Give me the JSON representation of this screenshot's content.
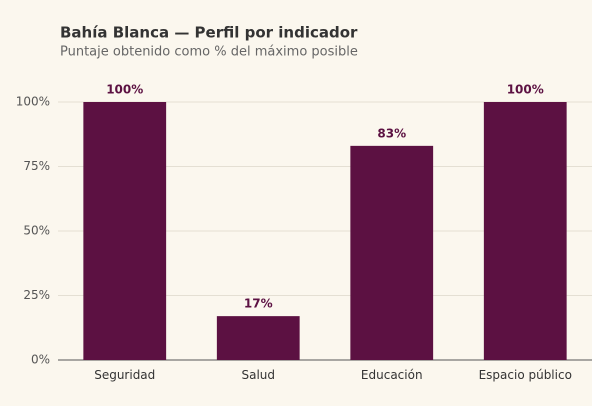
{
  "chart_data": {
    "type": "bar",
    "title": "Bahía Blanca — Perfil por indicador",
    "subtitle": "Puntaje obtenido como % del máximo posible",
    "categories": [
      "Seguridad",
      "Salud",
      "Educación",
      "Espacio público"
    ],
    "values": [
      100,
      17,
      83,
      100
    ],
    "value_labels": [
      "100%",
      "17%",
      "83%",
      "100%"
    ],
    "color": "#5c1142",
    "ylim": [
      0,
      100
    ],
    "yticks": [
      {
        "value": 0,
        "label": "0%"
      },
      {
        "value": 25,
        "label": "25%"
      },
      {
        "value": 50,
        "label": "50%"
      },
      {
        "value": 75,
        "label": "75%"
      },
      {
        "value": 100,
        "label": "100%"
      }
    ],
    "grid": true
  }
}
